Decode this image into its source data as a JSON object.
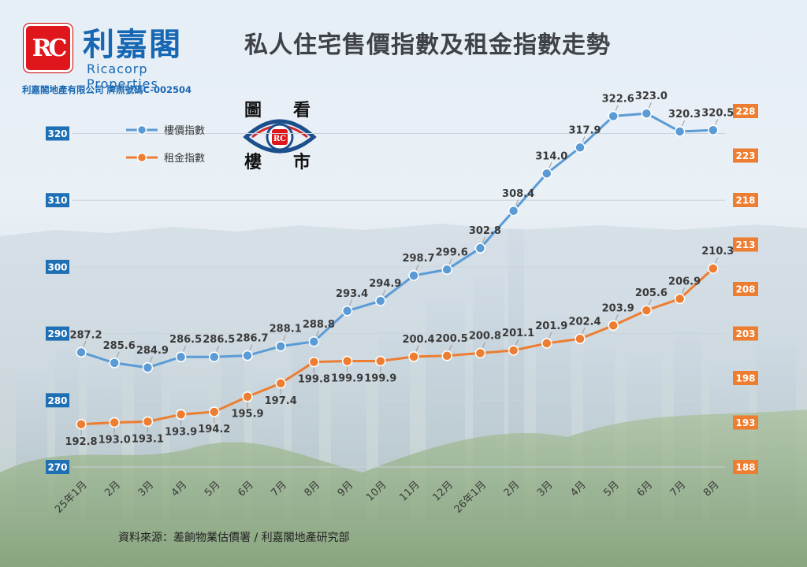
{
  "brand": {
    "logo_text": "RC",
    "name": "利嘉閣",
    "english_name": "Ricacorp Properties",
    "license": "利嘉閣地產有限公司 牌照號碼C-002504"
  },
  "title": "私人住宅售價指數及租金指數走勢",
  "badge": {
    "chars": [
      "圖",
      "看",
      "樓",
      "市"
    ],
    "center_text": "RC"
  },
  "source": "資料來源：差餉物業估價署 / 利嘉閣地產研究部",
  "colors": {
    "price": "#5b9bd5",
    "rent": "#ed7d31",
    "left_axis_box": "#1f6fb5",
    "right_axis_box": "#ed7d31",
    "brand": "#1767b3",
    "logo_red": "#e0161d"
  },
  "chart_data": {
    "type": "line",
    "categories": [
      "25年1月",
      "2月",
      "3月",
      "4月",
      "5月",
      "6月",
      "7月",
      "8月",
      "9月",
      "10月",
      "11月",
      "12月",
      "26年1月",
      "2月",
      "3月",
      "4月",
      "5月",
      "6月",
      "7月",
      "8月"
    ],
    "series": [
      {
        "name": "樓價指數",
        "axis": "left",
        "values": [
          287.2,
          285.6,
          284.9,
          286.5,
          286.5,
          286.7,
          288.1,
          288.8,
          293.4,
          294.9,
          298.7,
          299.6,
          302.8,
          308.4,
          314.0,
          317.9,
          322.6,
          323.0,
          320.3,
          320.5
        ],
        "labels": [
          "287.2",
          "285.6",
          "284.9",
          "286.5",
          "286.5",
          "286.7",
          "288.1",
          "288.8",
          "293.4",
          "294.9",
          "298.7",
          "299.6",
          "302.8",
          "308.4",
          "314.0",
          "317.9",
          "322.6",
          "323.0",
          "320.3",
          "320.5"
        ],
        "label_position": "above"
      },
      {
        "name": "租金指數",
        "axis": "right",
        "values": [
          192.8,
          193.0,
          193.1,
          193.9,
          194.2,
          195.9,
          197.4,
          199.8,
          199.9,
          199.9,
          200.4,
          200.5,
          200.8,
          201.1,
          201.9,
          202.4,
          203.9,
          205.6,
          206.9,
          210.3
        ],
        "labels": [
          "192.8",
          "193.0",
          "193.1",
          "193.9",
          "194.2",
          "195.9",
          "197.4",
          "199.8",
          "199.9",
          "199.9",
          "200.4",
          "200.5",
          "200.8",
          "201.1",
          "201.9",
          "202.4",
          "203.9",
          "205.6",
          "206.9",
          "210.3"
        ],
        "label_position": [
          "below",
          "below",
          "below",
          "below",
          "below",
          "below",
          "below",
          "below",
          "below",
          "below",
          "above",
          "above",
          "above",
          "above",
          "above",
          "above",
          "above",
          "above",
          "above",
          "above"
        ]
      }
    ],
    "y_left": {
      "ticks": [
        "270",
        "280",
        "290",
        "300",
        "310",
        "320"
      ],
      "range": [
        270,
        322
      ]
    },
    "y_right": {
      "ticks": [
        "188",
        "193",
        "198",
        "203",
        "208",
        "213",
        "218",
        "223",
        "228"
      ],
      "range": [
        188,
        228
      ]
    },
    "grid": true,
    "legend": "top-left"
  }
}
